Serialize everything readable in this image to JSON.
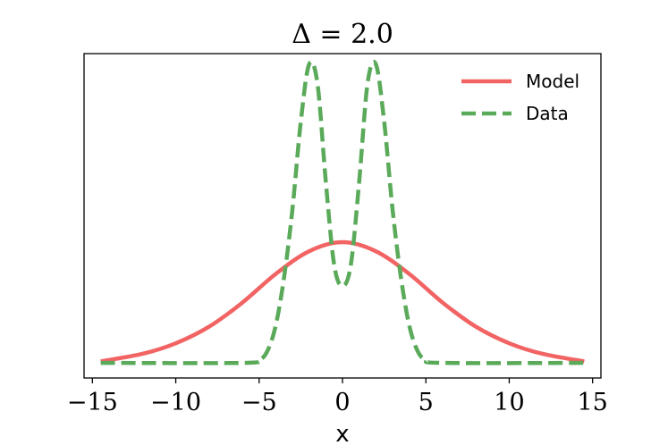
{
  "chart_data": {
    "type": "line",
    "title": "Δ = 2.0",
    "xlabel": "x",
    "ylabel": "",
    "xlim": [
      -15.5,
      15.5
    ],
    "ylim": [
      -0.01,
      0.205
    ],
    "y_ticks_visible": false,
    "x_ticks": [
      -15,
      -10,
      -5,
      0,
      5,
      10,
      15
    ],
    "x_tick_labels": [
      "−15",
      "−10",
      "−5",
      "0",
      "5",
      "10",
      "15"
    ],
    "grid": false,
    "legend": {
      "placement": "top-right",
      "entries": [
        "Model",
        "Data"
      ]
    },
    "series": [
      {
        "name": "Model",
        "style": "solid",
        "color": "#f26363",
        "x": [
          -14.5,
          -12,
          -10,
          -8,
          -6,
          -4,
          -2,
          0,
          2,
          4,
          6,
          8,
          10,
          12,
          14.5
        ],
        "y": [
          0.001,
          0.006,
          0.013,
          0.024,
          0.04,
          0.059,
          0.074,
          0.08,
          0.074,
          0.059,
          0.04,
          0.024,
          0.013,
          0.006,
          0.001
        ]
      },
      {
        "name": "Data",
        "style": "dashed",
        "color": "#5aaa5a",
        "x": [
          -14.5,
          -6,
          -5,
          -4.5,
          -4,
          -3.5,
          -3,
          -2.5,
          -2,
          -1.5,
          -1,
          -0.5,
          0,
          0.5,
          1,
          1.5,
          2,
          2.5,
          3,
          3.5,
          4,
          4.5,
          5,
          6,
          14.5
        ],
        "y": [
          0.0,
          0.0,
          0.002,
          0.008,
          0.025,
          0.057,
          0.102,
          0.16,
          0.198,
          0.185,
          0.12,
          0.065,
          0.051,
          0.065,
          0.12,
          0.185,
          0.198,
          0.16,
          0.102,
          0.057,
          0.025,
          0.008,
          0.002,
          0.0,
          0.0
        ]
      }
    ]
  }
}
